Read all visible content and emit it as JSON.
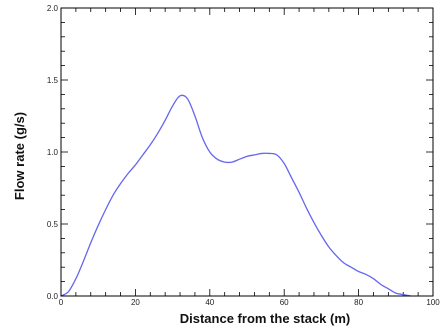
{
  "chart_data": {
    "type": "line",
    "title": "",
    "xlabel": "Distance from the stack (m)",
    "ylabel": "Flow rate (g/s)",
    "xlim": [
      0,
      100
    ],
    "ylim": [
      0,
      2.0
    ],
    "xticks": [
      0,
      20,
      40,
      60,
      80,
      100
    ],
    "xtick_labels": [
      "0",
      "20",
      "40",
      "60",
      "80",
      "100"
    ],
    "yticks": [
      0,
      0.5,
      1.0,
      1.5,
      2.0
    ],
    "ytick_labels": [
      "0.0",
      "0.5",
      "1.0",
      "1.5",
      "2.0"
    ],
    "grid": false,
    "legend": "none",
    "line_color": "#6666ee",
    "series": [
      {
        "x": [
          0,
          2,
          4,
          6,
          8,
          10,
          12,
          14,
          16,
          18,
          20,
          22,
          24,
          26,
          28,
          30,
          32,
          34,
          36,
          38,
          40,
          42,
          44,
          46,
          48,
          50,
          52,
          54,
          56,
          58,
          60,
          62,
          64,
          66,
          68,
          70,
          72,
          74,
          76,
          78,
          80,
          82,
          84,
          86,
          88,
          90,
          92,
          94
        ],
        "y": [
          0.0,
          0.03,
          0.12,
          0.24,
          0.37,
          0.49,
          0.6,
          0.7,
          0.78,
          0.85,
          0.91,
          0.98,
          1.05,
          1.13,
          1.22,
          1.32,
          1.39,
          1.37,
          1.25,
          1.1,
          1.0,
          0.95,
          0.93,
          0.93,
          0.95,
          0.97,
          0.98,
          0.99,
          0.99,
          0.98,
          0.92,
          0.82,
          0.72,
          0.61,
          0.51,
          0.42,
          0.34,
          0.28,
          0.23,
          0.2,
          0.17,
          0.15,
          0.12,
          0.08,
          0.05,
          0.02,
          0.01,
          0.0
        ]
      }
    ]
  }
}
